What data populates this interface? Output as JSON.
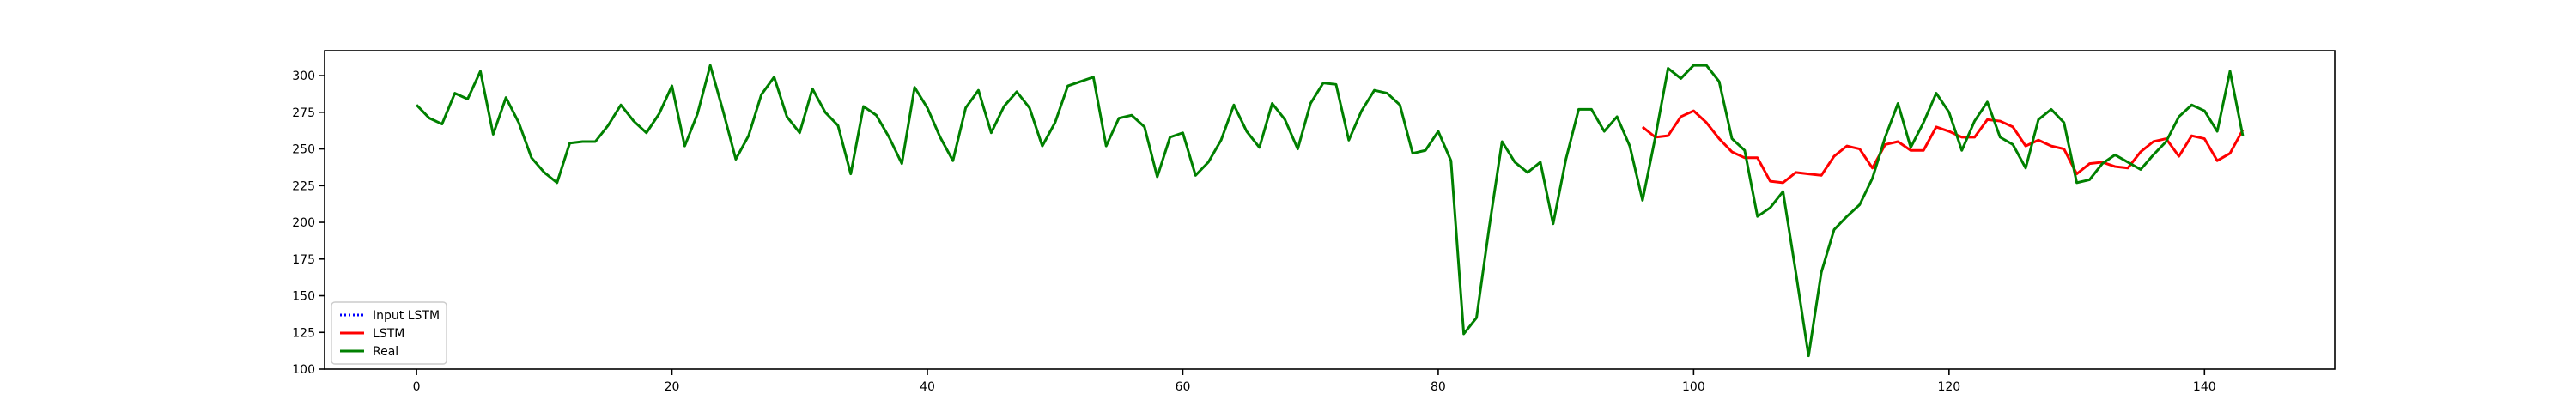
{
  "chart_data": {
    "type": "line",
    "title": "",
    "xlabel": "",
    "ylabel": "",
    "xlim": [
      -7.2,
      150.2
    ],
    "ylim": [
      100,
      317
    ],
    "grid": false,
    "legend_position": "lower-left",
    "x_ticks": [
      0,
      20,
      40,
      60,
      80,
      100,
      120,
      140
    ],
    "y_ticks": [
      100,
      125,
      150,
      175,
      200,
      225,
      250,
      275,
      300
    ],
    "x_tick_labels": [
      "0",
      "20",
      "40",
      "60",
      "80",
      "100",
      "120",
      "140"
    ],
    "y_tick_labels": [
      "100",
      "125",
      "150",
      "175",
      "200",
      "225",
      "250",
      "275",
      "300"
    ],
    "legend": [
      {
        "label": "Input LSTM",
        "color": "#0000ff",
        "style": "dotted"
      },
      {
        "label": "LSTM",
        "color": "#ff0000",
        "style": "solid"
      },
      {
        "label": "Real",
        "color": "#008000",
        "style": "solid"
      }
    ],
    "series": [
      {
        "name": "Input LSTM",
        "color": "#0000ff",
        "style": "dotted",
        "x": [],
        "values": []
      },
      {
        "name": "LSTM",
        "color": "#ff0000",
        "style": "solid",
        "x": [
          96,
          97,
          98,
          99,
          100,
          101,
          102,
          103,
          104,
          105,
          106,
          107,
          108,
          109,
          110,
          111,
          112,
          113,
          114,
          115,
          116,
          117,
          118,
          119,
          120,
          121,
          122,
          123,
          124,
          125,
          126,
          127,
          128,
          129,
          130,
          131,
          132,
          133,
          134,
          135,
          136,
          137,
          138,
          139,
          140,
          141,
          142,
          143
        ],
        "values": [
          265,
          258,
          259,
          272,
          276,
          268,
          257,
          248,
          244,
          244,
          228,
          227,
          234,
          233,
          232,
          245,
          252,
          250,
          237,
          253,
          255,
          249,
          249,
          265,
          262,
          258,
          258,
          270,
          269,
          265,
          252,
          256,
          252,
          250,
          233,
          240,
          241,
          238,
          237,
          248,
          255,
          257,
          245,
          259,
          257,
          242,
          247,
          263
        ]
      },
      {
        "name": "Real",
        "color": "#008000",
        "style": "solid",
        "x": [
          0,
          1,
          2,
          3,
          4,
          5,
          6,
          7,
          8,
          9,
          10,
          11,
          12,
          13,
          14,
          15,
          16,
          17,
          18,
          19,
          20,
          21,
          22,
          23,
          24,
          25,
          26,
          27,
          28,
          29,
          30,
          31,
          32,
          33,
          34,
          35,
          36,
          37,
          38,
          39,
          40,
          41,
          42,
          43,
          44,
          45,
          46,
          47,
          48,
          49,
          50,
          51,
          52,
          53,
          54,
          55,
          56,
          57,
          58,
          59,
          60,
          61,
          62,
          63,
          64,
          65,
          66,
          67,
          68,
          69,
          70,
          71,
          72,
          73,
          74,
          75,
          76,
          77,
          78,
          79,
          80,
          81,
          82,
          83,
          84,
          85,
          86,
          87,
          88,
          89,
          90,
          91,
          92,
          93,
          94,
          95,
          96,
          97,
          98,
          99,
          100,
          101,
          102,
          103,
          104,
          105,
          106,
          107,
          108,
          109,
          110,
          111,
          112,
          113,
          114,
          115,
          116,
          117,
          118,
          119,
          120,
          121,
          122,
          123,
          124,
          125,
          126,
          127,
          128,
          129,
          130,
          131,
          132,
          133,
          134,
          135,
          136,
          137,
          138,
          139,
          140,
          141,
          142,
          143
        ],
        "values": [
          280,
          271,
          267,
          288,
          284,
          303,
          260,
          285,
          268,
          244,
          234,
          227,
          254,
          255,
          255,
          266,
          280,
          269,
          261,
          274,
          293,
          252,
          274,
          307,
          276,
          243,
          259,
          287,
          299,
          272,
          261,
          291,
          275,
          266,
          233,
          279,
          273,
          258,
          240,
          292,
          278,
          258,
          242,
          278,
          290,
          261,
          279,
          289,
          278,
          252,
          268,
          293,
          296,
          299,
          252,
          271,
          273,
          265,
          231,
          258,
          261,
          232,
          241,
          256,
          280,
          262,
          251,
          281,
          270,
          250,
          281,
          295,
          294,
          256,
          276,
          290,
          288,
          280,
          247,
          249,
          262,
          242,
          124,
          135,
          197,
          255,
          241,
          234,
          241,
          199,
          243,
          277,
          277,
          262,
          272,
          252,
          215,
          258,
          305,
          298,
          307,
          307,
          296,
          257,
          249,
          204,
          210,
          221,
          166,
          109,
          166,
          195,
          204,
          212,
          230,
          258,
          281,
          251,
          268,
          288,
          275,
          249,
          269,
          282,
          258,
          253,
          237,
          270,
          277,
          268,
          227,
          229,
          240,
          246,
          241,
          236,
          246,
          255,
          272,
          280,
          276,
          262,
          303,
          259
        ]
      }
    ]
  }
}
